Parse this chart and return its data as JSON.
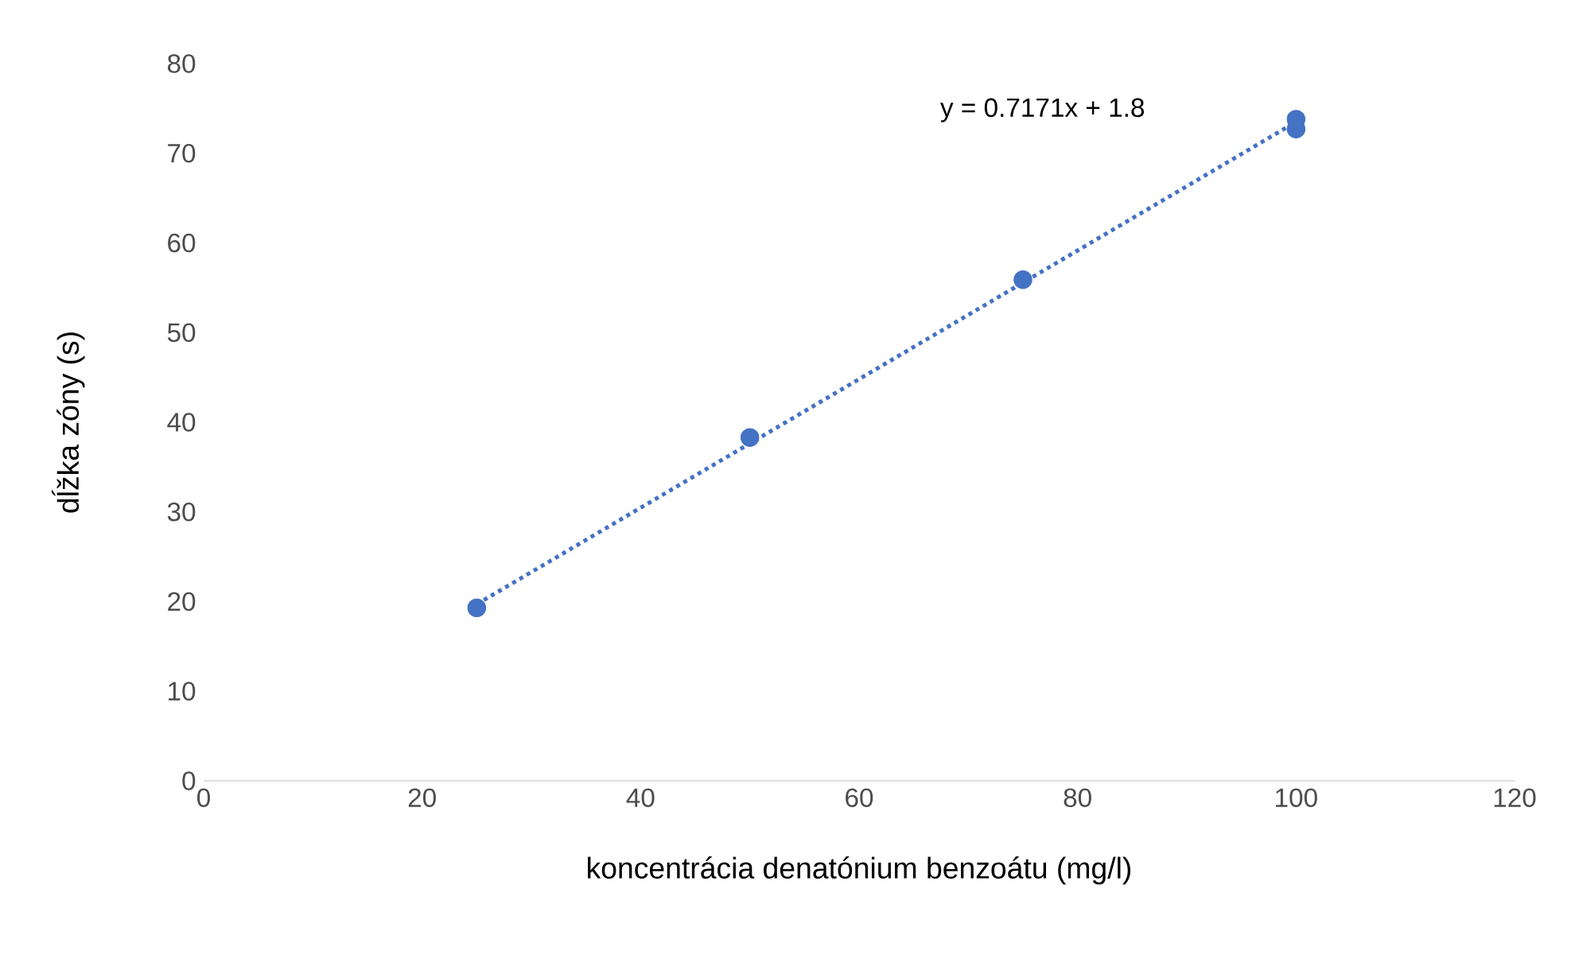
{
  "chart_data": {
    "type": "scatter",
    "xlabel": "koncentrácia denatónium benzoátu (mg/l)",
    "ylabel": "dĺžka zóny (s)",
    "xlim": [
      0,
      120
    ],
    "xticks": [
      0,
      20,
      40,
      60,
      80,
      100,
      120
    ],
    "ylim": [
      0,
      80
    ],
    "yticks": [
      0,
      10,
      20,
      30,
      40,
      50,
      60,
      70,
      80
    ],
    "grid": false,
    "legend": false,
    "annotations": [
      "y = 0.7171x + 1.8"
    ],
    "series": [
      {
        "color": "#4472c4",
        "marker": "circle",
        "x": [
          25,
          50,
          75,
          100,
          100
        ],
        "values": [
          19.3,
          38.3,
          55.9,
          73.8,
          72.7
        ]
      },
      {
        "type": "line",
        "color": "#4472c4",
        "line_style": "dotted",
        "marker": "none",
        "x": [
          25,
          100
        ],
        "values": [
          19.7,
          73.5
        ]
      }
    ]
  }
}
